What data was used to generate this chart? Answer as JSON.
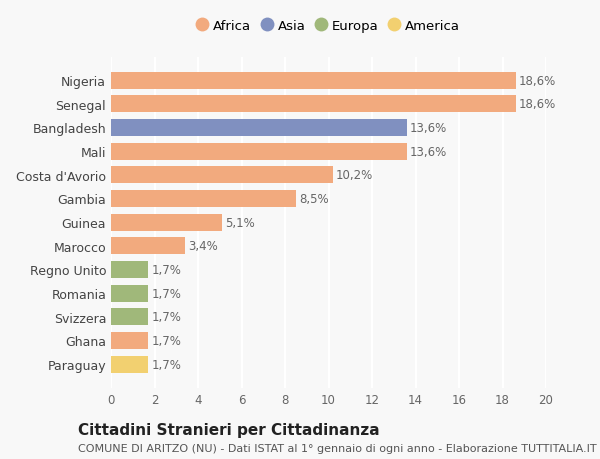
{
  "categories": [
    "Nigeria",
    "Senegal",
    "Bangladesh",
    "Mali",
    "Costa d'Avorio",
    "Gambia",
    "Guinea",
    "Marocco",
    "Regno Unito",
    "Romania",
    "Svizzera",
    "Ghana",
    "Paraguay"
  ],
  "values": [
    18.6,
    18.6,
    13.6,
    13.6,
    10.2,
    8.5,
    5.1,
    3.4,
    1.7,
    1.7,
    1.7,
    1.7,
    1.7
  ],
  "labels": [
    "18,6%",
    "18,6%",
    "13,6%",
    "13,6%",
    "10,2%",
    "8,5%",
    "5,1%",
    "3,4%",
    "1,7%",
    "1,7%",
    "1,7%",
    "1,7%",
    "1,7%"
  ],
  "continent": [
    "Africa",
    "Africa",
    "Asia",
    "Africa",
    "Africa",
    "Africa",
    "Africa",
    "Africa",
    "Europa",
    "Europa",
    "Europa",
    "Africa",
    "America"
  ],
  "colors": {
    "Africa": "#F2AA7E",
    "Asia": "#8090C0",
    "Europa": "#A0B87A",
    "America": "#F2D070"
  },
  "legend_order": [
    "Africa",
    "Asia",
    "Europa",
    "America"
  ],
  "xlim": [
    0,
    20
  ],
  "xticks": [
    0,
    2,
    4,
    6,
    8,
    10,
    12,
    14,
    16,
    18,
    20
  ],
  "title": "Cittadini Stranieri per Cittadinanza",
  "subtitle": "COMUNE DI ARITZO (NU) - Dati ISTAT al 1° gennaio di ogni anno - Elaborazione TUTTITALIA.IT",
  "bg_color": "#f8f8f8",
  "bar_height": 0.72,
  "label_fontsize": 8.5,
  "title_fontsize": 11,
  "subtitle_fontsize": 8
}
